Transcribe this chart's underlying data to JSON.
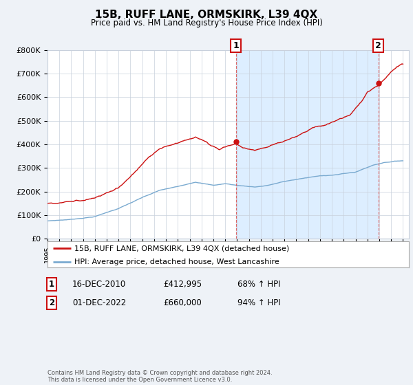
{
  "title": "15B, RUFF LANE, ORMSKIRK, L39 4QX",
  "subtitle": "Price paid vs. HM Land Registry's House Price Index (HPI)",
  "ylim": [
    0,
    800000
  ],
  "yticks": [
    0,
    100000,
    200000,
    300000,
    400000,
    500000,
    600000,
    700000,
    800000
  ],
  "ytick_labels": [
    "£0",
    "£100K",
    "£200K",
    "£300K",
    "£400K",
    "£500K",
    "£600K",
    "£700K",
    "£800K"
  ],
  "hpi_color": "#7aaad0",
  "price_color": "#cc1111",
  "bg_color": "#eef2f7",
  "plot_bg": "#ffffff",
  "grid_color": "#c8d0dc",
  "fill_color": "#ddeeff",
  "legend_label_price": "15B, RUFF LANE, ORMSKIRK, L39 4QX (detached house)",
  "legend_label_hpi": "HPI: Average price, detached house, West Lancashire",
  "footer": "Contains HM Land Registry data © Crown copyright and database right 2024.\nThis data is licensed under the Open Government Licence v3.0.",
  "table_rows": [
    [
      "1",
      "16-DEC-2010",
      "£412,995",
      "68% ↑ HPI"
    ],
    [
      "2",
      "01-DEC-2022",
      "£660,000",
      "94% ↑ HPI"
    ]
  ],
  "ann1_year": 2010,
  "ann1_month": 11,
  "ann1_price": 412995,
  "ann2_year": 2022,
  "ann2_month": 11,
  "ann2_price": 660000
}
